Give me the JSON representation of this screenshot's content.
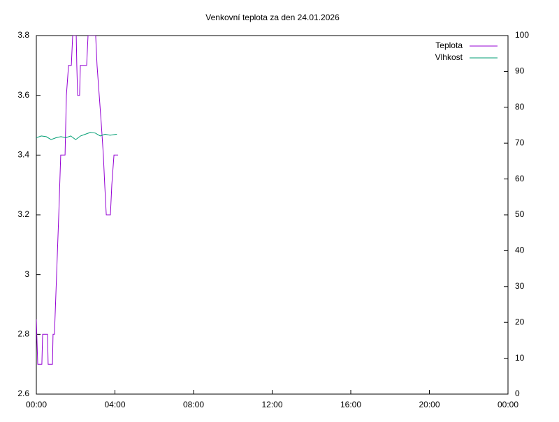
{
  "chart_data": {
    "type": "line",
    "title": "Venkovní teplota za den 24.01.2026",
    "xlim": [
      0,
      24
    ],
    "xticks": [
      {
        "value": 0,
        "label": "00:00"
      },
      {
        "value": 4,
        "label": "04:00"
      },
      {
        "value": 8,
        "label": "08:00"
      },
      {
        "value": 12,
        "label": "12:00"
      },
      {
        "value": 16,
        "label": "16:00"
      },
      {
        "value": 20,
        "label": "20:00"
      },
      {
        "value": 24,
        "label": "00:00"
      }
    ],
    "ylim": [
      2.6,
      3.8
    ],
    "yticks": [
      2.6,
      2.8,
      3,
      3.2,
      3.4,
      3.6,
      3.8
    ],
    "y2lim": [
      0,
      100
    ],
    "y2ticks": [
      0,
      10,
      20,
      30,
      40,
      50,
      60,
      70,
      80,
      90,
      100
    ],
    "legend": "top-right",
    "series": [
      {
        "name": "Teplota",
        "color": "#9400d3",
        "x": [
          0,
          0.07,
          0.28,
          0.32,
          0.57,
          0.6,
          0.82,
          0.85,
          0.92,
          1.03,
          1.14,
          1.24,
          1.46,
          1.53,
          1.64,
          1.78,
          1.85,
          2.03,
          2.06,
          2.1,
          2.2,
          2.24,
          2.56,
          2.63,
          3.02,
          3.09,
          3.2,
          3.31,
          3.41,
          3.48,
          3.56,
          3.77,
          3.84,
          3.95,
          4.16
        ],
        "values": [
          2.85,
          2.7,
          2.7,
          2.8,
          2.8,
          2.7,
          2.7,
          2.8,
          2.8,
          3.0,
          3.2,
          3.4,
          3.4,
          3.6,
          3.7,
          3.7,
          3.8,
          3.8,
          3.7,
          3.6,
          3.6,
          3.7,
          3.7,
          3.8,
          3.8,
          3.7,
          3.6,
          3.5,
          3.4,
          3.3,
          3.2,
          3.2,
          3.3,
          3.4,
          3.4
        ]
      },
      {
        "name": "Vlhkost",
        "color": "#009e73",
        "axis": "y2",
        "x": [
          0,
          0.25,
          0.5,
          0.75,
          1.0,
          1.25,
          1.5,
          1.75,
          2.0,
          2.25,
          2.5,
          2.75,
          3.0,
          3.25,
          3.5,
          3.75,
          4.1
        ],
        "values": [
          71.5,
          72,
          71.8,
          71,
          71.5,
          71.8,
          71.5,
          72,
          71,
          72,
          72.5,
          73,
          72.8,
          72,
          72.5,
          72.2,
          72.5
        ]
      }
    ]
  }
}
